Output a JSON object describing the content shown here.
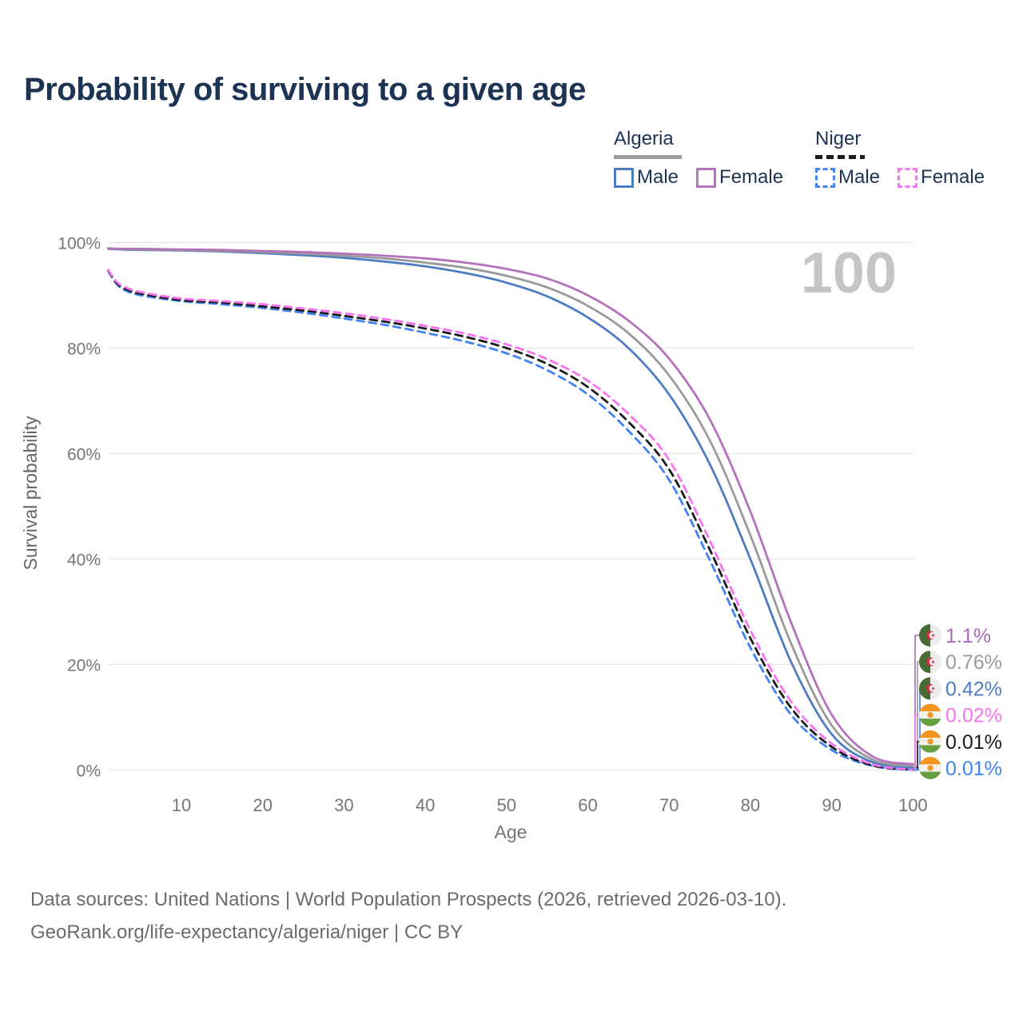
{
  "title": "Probability of surviving to a given age",
  "watermark_age": "100",
  "legend": {
    "groups": [
      {
        "label": "Algeria",
        "line_style": "solid",
        "underline_color": "#9e9e9e",
        "items": [
          {
            "label": "Male",
            "color": "#4d7cc3"
          },
          {
            "label": "Female",
            "color": "#b273bb"
          }
        ]
      },
      {
        "label": "Niger",
        "line_style": "dashed",
        "underline_color": "#1b1b1b",
        "items": [
          {
            "label": "Male",
            "color": "#4183f2"
          },
          {
            "label": "Female",
            "color": "#f973ef"
          }
        ]
      }
    ]
  },
  "axes": {
    "ylabel": "Survival probability",
    "xlabel": "Age",
    "yticks": [
      {
        "value": 0,
        "label": "0%"
      },
      {
        "value": 20,
        "label": "20%"
      },
      {
        "value": 40,
        "label": "40%"
      },
      {
        "value": 60,
        "label": "60%"
      },
      {
        "value": 80,
        "label": "80%"
      },
      {
        "value": 100,
        "label": "100%"
      }
    ],
    "xticks": [
      10,
      20,
      30,
      40,
      50,
      60,
      70,
      80,
      90,
      100
    ]
  },
  "chart_data": {
    "type": "line",
    "title": "Probability of surviving to a given age",
    "xlabel": "Age",
    "ylabel": "Survival probability",
    "xlim": [
      1,
      100
    ],
    "ylim": [
      0,
      100
    ],
    "grid": "horizontal",
    "legend_position": "top-right",
    "x": [
      1,
      2,
      3,
      5,
      10,
      15,
      20,
      25,
      30,
      35,
      40,
      45,
      50,
      55,
      60,
      65,
      70,
      75,
      80,
      85,
      90,
      95,
      100
    ],
    "series": [
      {
        "name": "Algeria Male",
        "country": "Algeria",
        "sex": "Male",
        "color": "#4d7cc3",
        "dash": "solid",
        "end_label": "0.42%",
        "values": [
          98.8,
          98.72,
          98.67,
          98.6,
          98.5,
          98.3,
          98.0,
          97.6,
          97.1,
          96.4,
          95.5,
          94.2,
          92.4,
          89.8,
          85.8,
          80.0,
          71.2,
          58.0,
          40.0,
          20.5,
          6.8,
          1.5,
          0.42
        ]
      },
      {
        "name": "Algeria Both sexes",
        "country": "Algeria",
        "sex": "Both sexes",
        "color": "#9a9a9a",
        "dash": "solid",
        "end_label": "0.76%",
        "values": [
          98.85,
          98.8,
          98.75,
          98.7,
          98.6,
          98.4,
          98.2,
          97.9,
          97.5,
          97.0,
          96.2,
          95.2,
          93.7,
          91.5,
          88.0,
          82.8,
          74.8,
          62.5,
          44.5,
          24.0,
          8.5,
          2.0,
          0.76
        ]
      },
      {
        "name": "Algeria Female",
        "country": "Algeria",
        "sex": "Female",
        "color": "#b273bb",
        "dash": "solid",
        "end_label": "1.1%",
        "values": [
          98.9,
          98.85,
          98.82,
          98.8,
          98.7,
          98.6,
          98.4,
          98.2,
          97.9,
          97.5,
          97.0,
          96.2,
          95.0,
          93.2,
          90.0,
          85.2,
          78.0,
          66.5,
          49.0,
          28.0,
          10.5,
          2.6,
          1.1
        ]
      },
      {
        "name": "Niger Male",
        "country": "Niger",
        "sex": "Male",
        "color": "#4183f2",
        "dash": "dashed",
        "end_label": "0.01%",
        "values": [
          94.6,
          92.2,
          91.0,
          90.0,
          88.9,
          88.3,
          87.6,
          86.7,
          85.6,
          84.4,
          82.9,
          81.2,
          79.0,
          75.8,
          71.2,
          64.3,
          55.0,
          39.8,
          23.2,
          10.5,
          3.8,
          0.8,
          0.01
        ]
      },
      {
        "name": "Niger Both sexes",
        "country": "Niger",
        "sex": "Both sexes",
        "color": "#1b1b1b",
        "dash": "dashed",
        "end_label": "0.01%",
        "values": [
          94.7,
          92.4,
          91.3,
          90.3,
          89.1,
          88.6,
          87.9,
          87.1,
          86.1,
          85.0,
          83.7,
          82.1,
          80.0,
          77.0,
          72.6,
          66.0,
          57.0,
          41.8,
          25.0,
          11.8,
          4.4,
          0.9,
          0.01
        ]
      },
      {
        "name": "Niger Female",
        "country": "Niger",
        "sex": "Female",
        "color": "#f973ef",
        "dash": "dashed",
        "end_label": "0.02%",
        "values": [
          94.8,
          92.6,
          91.6,
          90.6,
          89.4,
          88.9,
          88.3,
          87.5,
          86.6,
          85.5,
          84.2,
          82.7,
          80.7,
          77.9,
          73.8,
          67.5,
          58.8,
          43.5,
          26.5,
          13.0,
          5.0,
          1.1,
          0.02
        ]
      }
    ]
  },
  "end_labels": [
    {
      "text": "1.1%",
      "color": "#a86ab8",
      "flag": "algeria",
      "series": "Algeria Female"
    },
    {
      "text": "0.76%",
      "color": "#9a9a9a",
      "flag": "algeria",
      "series": "Algeria Both sexes"
    },
    {
      "text": "0.42%",
      "color": "#4d7cc3",
      "flag": "algeria",
      "series": "Algeria Male"
    },
    {
      "text": "0.02%",
      "color": "#f973ef",
      "flag": "niger",
      "series": "Niger Female"
    },
    {
      "text": "0.01%",
      "color": "#1b1b1b",
      "flag": "niger",
      "series": "Niger Both sexes"
    },
    {
      "text": "0.01%",
      "color": "#4183f2",
      "flag": "niger",
      "series": "Niger Male"
    }
  ],
  "flag_colors": {
    "algeria": {
      "green": "#486b33",
      "white": "#ececea",
      "red": "#cf2b43"
    },
    "niger": {
      "orange": "#f5941e",
      "white": "#f2f1ef",
      "green": "#66a03c"
    }
  },
  "footer": {
    "line1": "Data sources: United Nations | World Population Prospects (2026, retrieved 2026-03-10).",
    "line2": "GeoRank.org/life-expectancy/algeria/niger | CC BY"
  }
}
